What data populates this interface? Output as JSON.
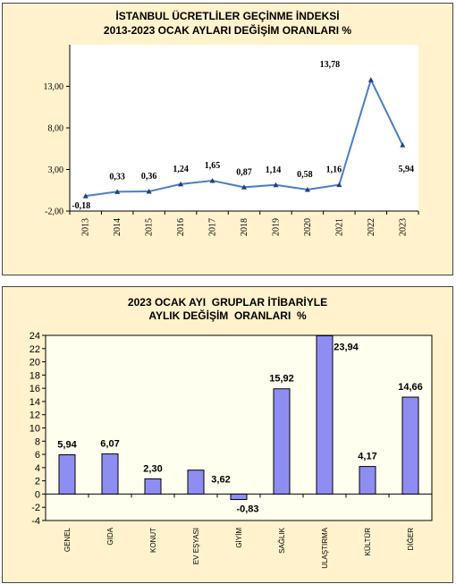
{
  "colors": {
    "panel_bg": "#FFF2CC",
    "line": "#4A7EC6",
    "bar_fill": "#8E8EF2",
    "plot2_bg": "#FFFFF0"
  },
  "chart_data": [
    {
      "type": "line",
      "title": "İSTANBUL ÜCRETLİLER GEÇİNME İNDEKSİ",
      "subtitle": "2013-2023 OCAK AYLARI DEĞİŞİM ORANLARI %",
      "categories": [
        "2013",
        "2014",
        "2015",
        "2016",
        "2017",
        "2018",
        "2019",
        "2020",
        "2021",
        "2022",
        "2023"
      ],
      "values": [
        -0.18,
        0.33,
        0.36,
        1.24,
        1.65,
        0.87,
        1.14,
        0.58,
        1.16,
        13.78,
        5.94
      ],
      "data_labels": [
        "-0,18",
        "0,33",
        "0,36",
        "1,24",
        "1,65",
        "0,87",
        "1,14",
        "0,58",
        "1,16",
        "13,78",
        "5,94"
      ],
      "y_ticks": [
        "-2,00",
        "3,00",
        "8,00",
        "13,00"
      ],
      "y_tick_values": [
        -2,
        3,
        8,
        13
      ],
      "ylim": [
        -2,
        18
      ],
      "grid": false,
      "legend": "none"
    },
    {
      "type": "bar",
      "title": "2023 OCAK AYI  GRUPLAR İTİBARİYLE",
      "subtitle": "AYLIK DEĞİŞİM  ORANLARI  %",
      "categories": [
        "GENEL",
        "GIDA",
        "KONUT",
        "EV EŞYASI",
        "GİYİM",
        "SAĞLIK",
        "ULAŞTIRMA",
        "KÜLTÜR",
        "DİĞER"
      ],
      "values": [
        5.94,
        6.07,
        2.3,
        3.62,
        -0.83,
        15.92,
        23.94,
        4.17,
        14.66
      ],
      "data_labels": [
        "5,94",
        "6,07",
        "2,30",
        "3,62",
        "-0,83",
        "15,92",
        "23,94",
        "4,17",
        "14,66"
      ],
      "y_ticks": [
        "-4",
        "-2",
        "0",
        "2",
        "4",
        "6",
        "8",
        "10",
        "12",
        "14",
        "16",
        "18",
        "20",
        "22",
        "24"
      ],
      "y_tick_values": [
        -4,
        -2,
        0,
        2,
        4,
        6,
        8,
        10,
        12,
        14,
        16,
        18,
        20,
        22,
        24
      ],
      "ylim": [
        -4,
        24
      ],
      "grid": false,
      "legend": "none"
    }
  ]
}
